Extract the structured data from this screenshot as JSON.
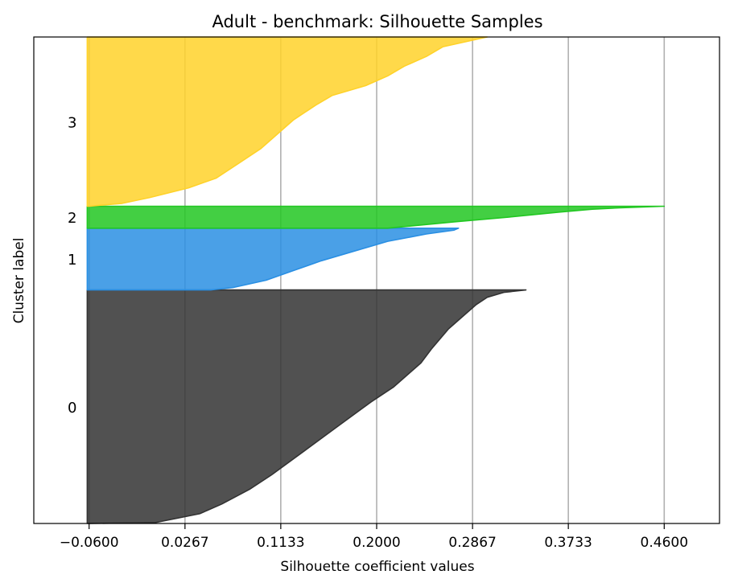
{
  "chart_data": {
    "type": "area",
    "title": "Adult - benchmark: Silhouette Samples",
    "xlabel": "Silhouette coefficient values",
    "ylabel": "Cluster label",
    "xlim": [
      -0.11,
      0.51
    ],
    "xticks": [
      -0.06,
      0.0267,
      0.1133,
      0.2,
      0.2867,
      0.3733,
      0.46
    ],
    "xtick_labels": [
      "−0.0600",
      "0.0267",
      "0.1133",
      "0.2000",
      "0.2867",
      "0.3733",
      "0.4600"
    ],
    "grid_x": true,
    "ylim": [
      0,
      100
    ],
    "baseline_x": -0.0617,
    "clusters": [
      {
        "label": "0",
        "color": "#333333",
        "y_range": [
          0,
          48
        ],
        "profile": [
          [
            0,
            -0.06
          ],
          [
            0.2,
            0.0
          ],
          [
            2,
            0.04
          ],
          [
            4,
            0.06
          ],
          [
            7,
            0.085
          ],
          [
            10,
            0.105
          ],
          [
            15,
            0.135
          ],
          [
            20,
            0.165
          ],
          [
            25,
            0.195
          ],
          [
            28,
            0.215
          ],
          [
            33,
            0.24
          ],
          [
            36,
            0.25
          ],
          [
            40,
            0.265
          ],
          [
            43,
            0.28
          ],
          [
            45,
            0.29
          ],
          [
            46.5,
            0.3
          ],
          [
            47.5,
            0.315
          ],
          [
            48,
            0.335
          ]
        ]
      },
      {
        "label": "1",
        "color": "#2a8fe3",
        "y_range": [
          48,
          60.7
        ],
        "profile": [
          [
            48,
            0.05
          ],
          [
            48.5,
            0.07
          ],
          [
            50,
            0.1
          ],
          [
            52,
            0.125
          ],
          [
            54,
            0.15
          ],
          [
            56,
            0.18
          ],
          [
            58,
            0.21
          ],
          [
            59.5,
            0.245
          ],
          [
            60.3,
            0.27
          ],
          [
            60.7,
            0.274
          ]
        ]
      },
      {
        "label": "2",
        "color": "#22c722",
        "y_range": [
          60.7,
          65.2
        ],
        "profile": [
          [
            60.7,
            0.21
          ],
          [
            62,
            0.27
          ],
          [
            63,
            0.32
          ],
          [
            64,
            0.365
          ],
          [
            64.6,
            0.395
          ],
          [
            64.9,
            0.42
          ],
          [
            65.2,
            0.46
          ]
        ]
      },
      {
        "label": "3",
        "color": "#ffd22a",
        "y_range": [
          65.2,
          100
        ],
        "profile": [
          [
            65.2,
            -0.06
          ],
          [
            65.8,
            -0.03
          ],
          [
            67,
            -0.005
          ],
          [
            69,
            0.03
          ],
          [
            71,
            0.055
          ],
          [
            74,
            0.075
          ],
          [
            77,
            0.095
          ],
          [
            80,
            0.11
          ],
          [
            83,
            0.125
          ],
          [
            86,
            0.145
          ],
          [
            88,
            0.16
          ],
          [
            90,
            0.19
          ],
          [
            92,
            0.21
          ],
          [
            94,
            0.225
          ],
          [
            96,
            0.245
          ],
          [
            98,
            0.26
          ],
          [
            99.5,
            0.29
          ],
          [
            100,
            0.3
          ]
        ]
      }
    ]
  }
}
